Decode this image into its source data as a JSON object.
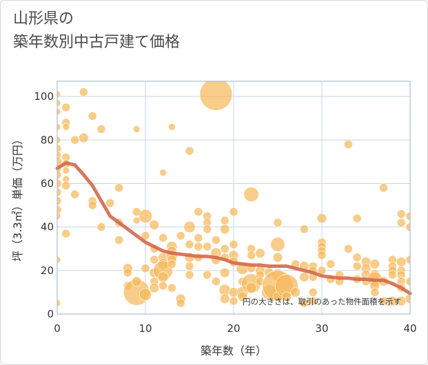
{
  "page": {
    "title_line1": "山形県の",
    "title_line2": "築年数別中古戸建て価格"
  },
  "chart_data": {
    "type": "scatter",
    "title": "山形県の 築年数別中古戸建て価格",
    "xlabel": "築年数（年）",
    "ylabel": "坪（3.3㎡）単価（万円）",
    "xlim": [
      0,
      40
    ],
    "ylim": [
      0,
      107
    ],
    "xticks": [
      0,
      10,
      20,
      30,
      40
    ],
    "yticks": [
      0,
      20,
      40,
      60,
      80,
      100
    ],
    "grid": true,
    "annotation": "円の大きさは、取引のあった物件面積を示す",
    "colors": {
      "bubble": "#f5b85c",
      "bubble_edge": "#ffffff",
      "trend": "#d4684e",
      "grid": "#c5d6e6",
      "plot_border": "#9ab0c8"
    },
    "bubbles": {
      "fields": [
        "x",
        "y",
        "size"
      ],
      "points": [
        [
          0,
          101,
          1
        ],
        [
          0,
          97,
          1
        ],
        [
          0,
          93,
          1
        ],
        [
          0,
          86,
          1
        ],
        [
          0,
          80,
          1
        ],
        [
          0,
          76,
          2
        ],
        [
          0,
          73,
          2
        ],
        [
          0,
          70,
          3
        ],
        [
          0,
          67,
          2
        ],
        [
          0,
          64,
          2
        ],
        [
          0,
          60,
          2
        ],
        [
          0,
          56,
          2
        ],
        [
          0,
          52,
          2
        ],
        [
          0,
          48,
          2
        ],
        [
          0,
          45,
          1
        ],
        [
          0,
          25,
          1
        ],
        [
          0,
          5,
          1
        ],
        [
          1,
          95,
          2
        ],
        [
          1,
          88,
          2
        ],
        [
          1,
          86,
          1
        ],
        [
          1,
          72,
          2
        ],
        [
          1,
          69,
          2
        ],
        [
          1,
          66,
          1
        ],
        [
          1,
          62,
          1
        ],
        [
          1,
          59,
          2
        ],
        [
          1,
          37,
          2
        ],
        [
          2,
          80,
          2
        ],
        [
          2,
          55,
          2
        ],
        [
          3,
          102,
          2
        ],
        [
          3,
          81,
          3
        ],
        [
          4,
          91,
          2
        ],
        [
          4,
          52,
          2
        ],
        [
          4,
          50,
          2
        ],
        [
          5,
          85,
          2
        ],
        [
          5,
          40,
          2
        ],
        [
          6,
          51,
          2
        ],
        [
          7,
          58,
          2
        ],
        [
          7,
          42,
          2
        ],
        [
          7,
          34,
          2
        ],
        [
          8,
          21,
          3
        ],
        [
          8,
          19,
          2
        ],
        [
          8,
          13,
          2
        ],
        [
          9,
          85,
          1
        ],
        [
          9,
          47,
          2
        ],
        [
          9,
          43,
          1
        ],
        [
          9,
          10,
          40
        ],
        [
          9,
          15,
          3
        ],
        [
          10,
          45,
          8
        ],
        [
          10,
          36,
          2
        ],
        [
          10,
          21,
          2
        ],
        [
          10,
          9,
          6
        ],
        [
          11,
          41,
          3
        ],
        [
          11,
          30,
          2
        ],
        [
          11,
          25,
          2
        ],
        [
          11,
          19,
          3
        ],
        [
          11,
          15,
          2
        ],
        [
          11,
          12,
          3
        ],
        [
          12,
          65,
          1
        ],
        [
          12,
          35,
          2
        ],
        [
          12,
          26,
          3
        ],
        [
          12,
          23,
          4
        ],
        [
          12,
          20,
          20
        ],
        [
          12,
          17,
          4
        ],
        [
          12,
          13,
          2
        ],
        [
          13,
          86,
          1
        ],
        [
          13,
          31,
          4
        ],
        [
          13,
          29,
          3
        ],
        [
          13,
          27,
          5
        ],
        [
          13,
          25,
          3
        ],
        [
          13,
          23,
          2
        ],
        [
          13,
          12,
          2
        ],
        [
          14,
          7,
          3
        ],
        [
          14,
          5,
          2
        ],
        [
          14,
          36,
          2
        ],
        [
          15,
          75,
          2
        ],
        [
          15,
          40,
          5
        ],
        [
          15,
          32,
          2
        ],
        [
          15,
          26,
          3
        ],
        [
          15,
          22,
          2
        ],
        [
          15,
          18,
          2
        ],
        [
          16,
          47,
          2
        ],
        [
          16,
          35,
          2
        ],
        [
          16,
          31,
          2
        ],
        [
          16,
          26,
          2
        ],
        [
          17,
          45,
          2
        ],
        [
          17,
          42,
          2
        ],
        [
          17,
          39,
          2
        ],
        [
          17,
          31,
          2
        ],
        [
          17,
          18,
          2
        ],
        [
          18,
          101,
          65
        ],
        [
          18,
          34,
          2
        ],
        [
          18,
          28,
          4
        ],
        [
          18,
          25,
          3
        ],
        [
          18,
          15,
          2
        ],
        [
          19,
          43,
          2
        ],
        [
          19,
          39,
          3
        ],
        [
          19,
          30,
          2
        ],
        [
          19,
          26,
          2
        ],
        [
          19,
          19,
          3
        ],
        [
          19,
          11,
          5
        ],
        [
          19,
          7,
          3
        ],
        [
          20,
          47,
          2
        ],
        [
          20,
          32,
          2
        ],
        [
          20,
          27,
          3
        ],
        [
          20,
          24,
          3
        ],
        [
          20,
          10,
          3
        ],
        [
          20,
          6,
          2
        ],
        [
          21,
          21,
          6
        ],
        [
          21,
          15,
          2
        ],
        [
          21,
          10,
          5
        ],
        [
          21,
          8,
          3
        ],
        [
          22,
          55,
          10
        ],
        [
          22,
          30,
          2
        ],
        [
          22,
          27,
          2
        ],
        [
          22,
          21,
          2
        ],
        [
          22,
          14,
          20
        ],
        [
          22,
          12,
          4
        ],
        [
          23,
          28,
          3
        ],
        [
          23,
          20,
          3
        ],
        [
          23,
          18,
          2
        ],
        [
          23,
          15,
          2
        ],
        [
          24,
          19,
          3
        ],
        [
          24,
          10,
          10
        ],
        [
          25,
          42,
          2
        ],
        [
          25,
          32,
          9
        ],
        [
          25,
          26,
          3
        ],
        [
          25,
          18,
          6
        ],
        [
          25,
          13,
          58
        ],
        [
          25,
          8,
          3
        ],
        [
          26,
          13,
          30
        ],
        [
          26,
          8,
          3
        ],
        [
          27,
          23,
          2
        ],
        [
          27,
          10,
          3
        ],
        [
          28,
          39,
          2
        ],
        [
          28,
          22,
          3
        ],
        [
          28,
          17,
          3
        ],
        [
          28,
          5,
          2
        ],
        [
          29,
          22,
          2
        ],
        [
          29,
          20,
          2
        ],
        [
          29,
          17,
          2
        ],
        [
          29,
          10,
          2
        ],
        [
          29,
          6,
          2
        ],
        [
          30,
          44,
          3
        ],
        [
          30,
          33,
          2
        ],
        [
          30,
          31,
          2
        ],
        [
          30,
          29,
          2
        ],
        [
          30,
          27,
          2
        ],
        [
          30,
          20,
          2
        ],
        [
          31,
          23,
          2
        ],
        [
          31,
          16,
          2
        ],
        [
          32,
          18,
          2
        ],
        [
          32,
          15,
          2
        ],
        [
          33,
          78,
          2
        ],
        [
          33,
          30,
          2
        ],
        [
          34,
          44,
          2
        ],
        [
          34,
          26,
          2
        ],
        [
          34,
          22,
          2
        ],
        [
          34,
          16,
          2
        ],
        [
          35,
          24,
          3
        ],
        [
          35,
          21,
          3
        ],
        [
          35,
          18,
          3
        ],
        [
          35,
          15,
          2
        ],
        [
          36,
          23,
          3
        ],
        [
          36,
          18,
          4
        ],
        [
          36,
          16,
          10
        ],
        [
          36,
          13,
          3
        ],
        [
          36,
          10,
          2
        ],
        [
          37,
          58,
          2
        ],
        [
          37,
          15,
          3
        ],
        [
          37,
          6,
          2
        ],
        [
          38,
          25,
          2
        ],
        [
          38,
          22,
          2
        ],
        [
          38,
          20,
          2
        ],
        [
          38,
          18,
          2
        ],
        [
          38,
          6,
          3
        ],
        [
          39,
          46,
          2
        ],
        [
          39,
          42,
          2
        ],
        [
          39,
          24,
          3
        ],
        [
          39,
          20,
          2
        ],
        [
          39,
          18,
          2
        ],
        [
          39,
          15,
          2
        ],
        [
          39,
          12,
          2
        ],
        [
          39,
          6,
          3
        ],
        [
          40,
          45,
          2
        ],
        [
          40,
          40,
          2
        ],
        [
          40,
          25,
          2
        ],
        [
          40,
          15,
          2
        ],
        [
          40,
          7,
          3
        ]
      ]
    },
    "trend": {
      "x": [
        0,
        1,
        2,
        3,
        4,
        5,
        6,
        7,
        8,
        9,
        10,
        11,
        12,
        13,
        14,
        15,
        16,
        17,
        18,
        19,
        20,
        21,
        22,
        23,
        24,
        25,
        26,
        27,
        28,
        29,
        30,
        31,
        32,
        33,
        34,
        35,
        36,
        37,
        38,
        39,
        40
      ],
      "y": [
        67,
        69.5,
        68.5,
        64,
        59,
        52,
        45,
        42,
        39,
        36,
        33,
        31,
        29,
        28,
        27.5,
        27,
        26.5,
        26.5,
        26,
        25,
        23.5,
        23,
        22.5,
        22.5,
        22,
        22,
        22,
        21,
        20,
        19,
        17.5,
        17,
        16.5,
        16.5,
        16,
        16,
        15.5,
        15.5,
        14,
        12,
        9.5
      ]
    }
  }
}
